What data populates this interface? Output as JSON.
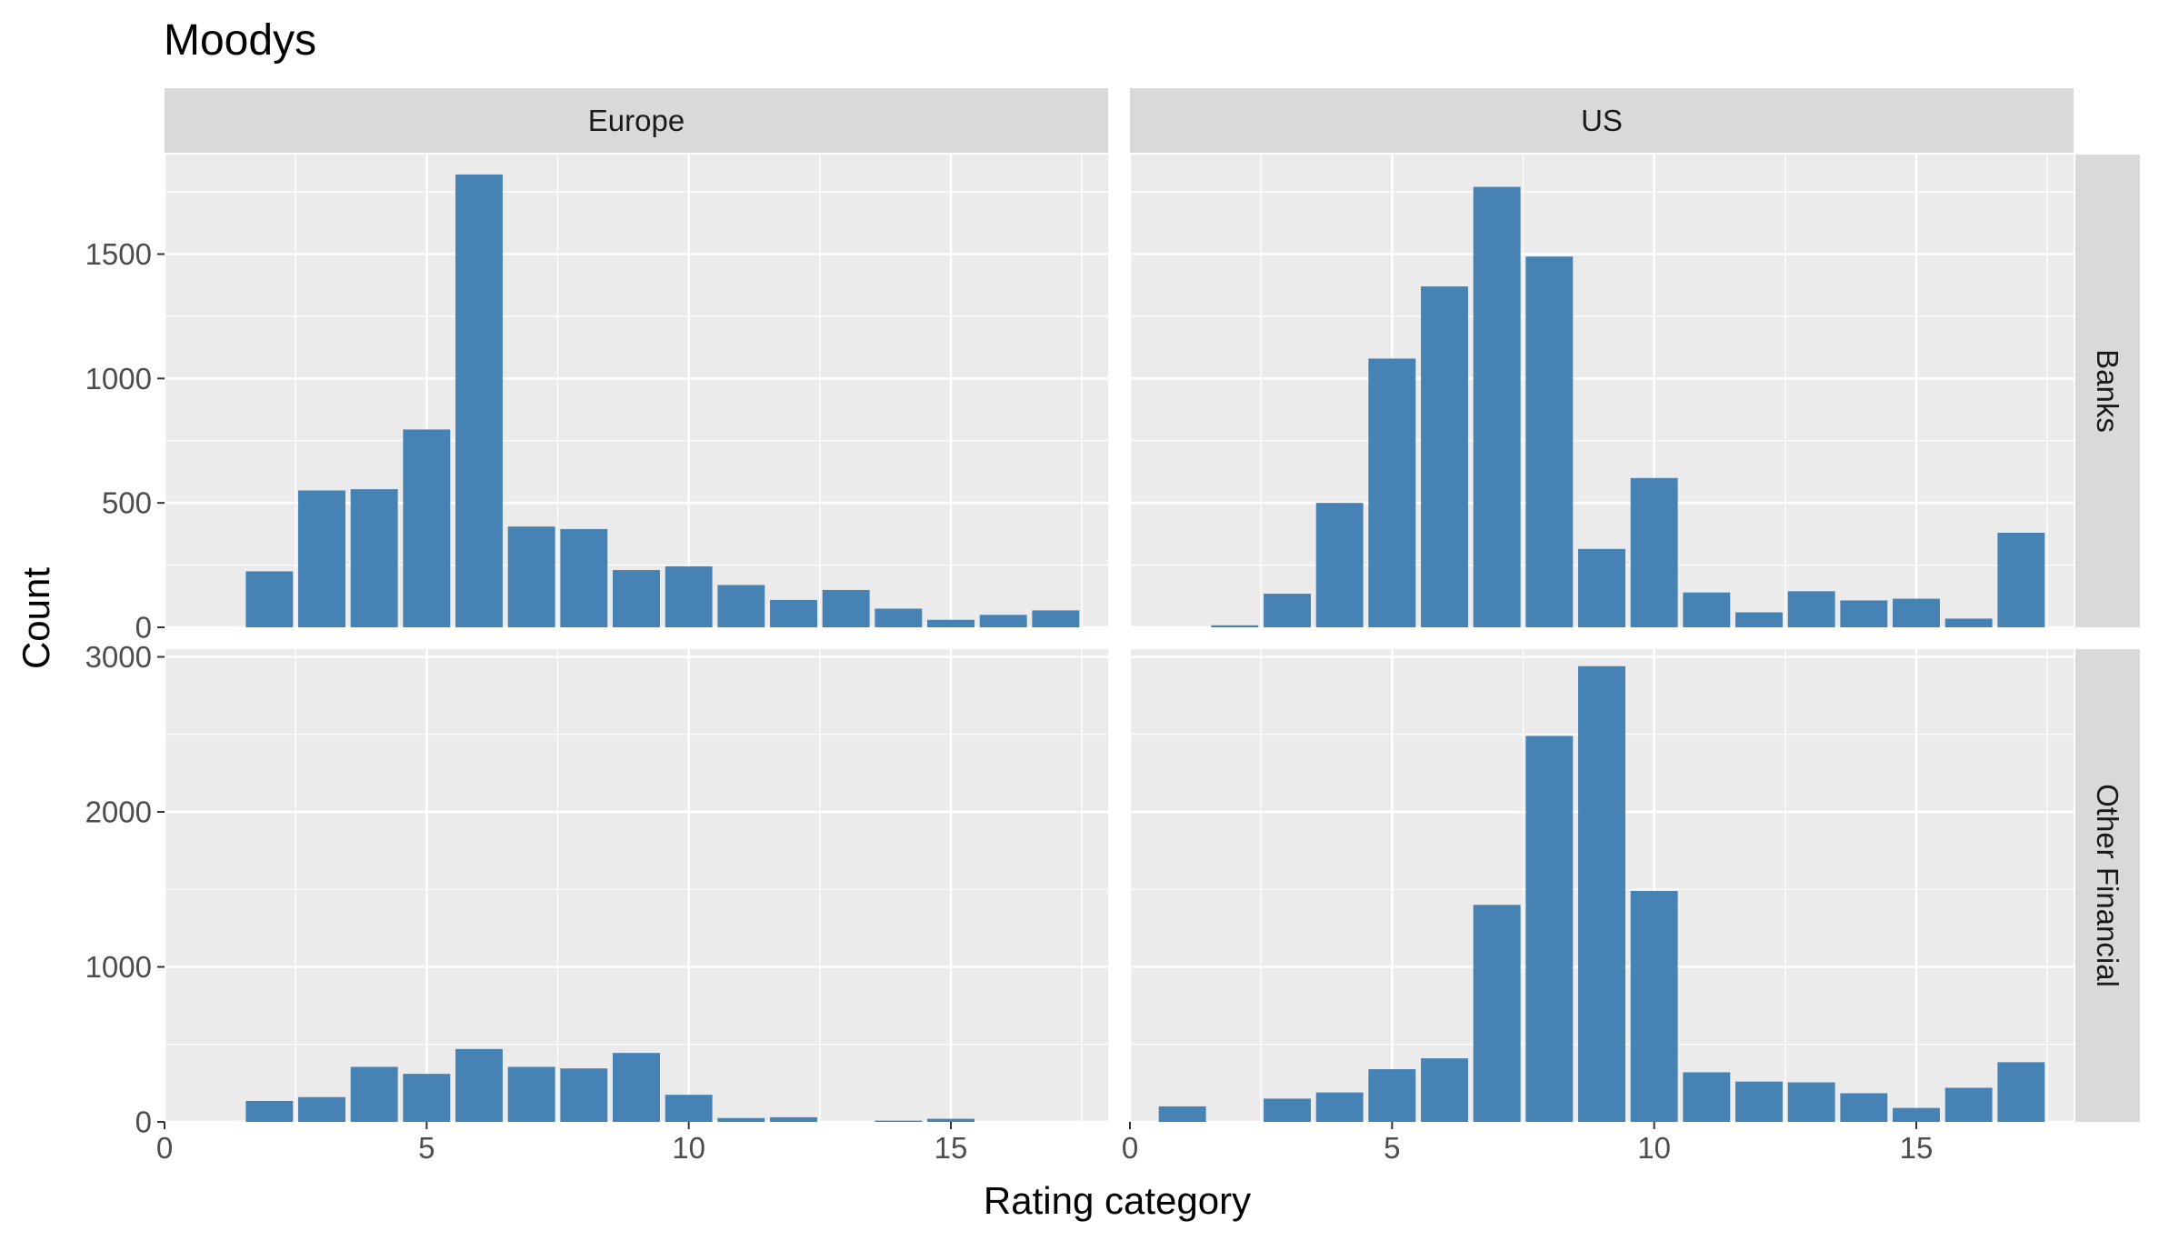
{
  "chart_data": {
    "type": "bar",
    "title": "Moodys",
    "xlabel": "Rating category",
    "ylabel": "Count",
    "xlim": [
      0,
      18
    ],
    "x_ticks": [
      0,
      5,
      10,
      15
    ],
    "grid": true,
    "bar_color": "#4682B4",
    "panel_background": "#EBEBEB",
    "strip_background": "#D9D9D9",
    "columns": [
      "Europe",
      "US"
    ],
    "rows": [
      {
        "name": "Banks",
        "ylim": [
          0,
          1900
        ],
        "y_ticks": [
          0,
          500,
          1000,
          1500
        ]
      },
      {
        "name": "Other Financial",
        "ylim": [
          0,
          3050
        ],
        "y_ticks": [
          0,
          1000,
          2000,
          3000
        ]
      }
    ],
    "panels": [
      {
        "row": "Banks",
        "column": "Europe",
        "x": [
          2,
          3,
          4,
          5,
          6,
          7,
          8,
          9,
          10,
          11,
          12,
          13,
          14,
          15,
          16,
          17
        ],
        "values": [
          225,
          550,
          555,
          795,
          1820,
          405,
          395,
          230,
          245,
          170,
          110,
          150,
          75,
          30,
          50,
          68
        ]
      },
      {
        "row": "Banks",
        "column": "US",
        "x": [
          2,
          3,
          4,
          5,
          6,
          7,
          8,
          9,
          10,
          11,
          12,
          13,
          14,
          15,
          16,
          17
        ],
        "values": [
          8,
          135,
          500,
          1080,
          1370,
          1770,
          1490,
          315,
          600,
          140,
          60,
          145,
          108,
          115,
          35,
          380
        ]
      },
      {
        "row": "Other Financial",
        "column": "Europe",
        "x": [
          2,
          3,
          4,
          5,
          6,
          7,
          8,
          9,
          10,
          11,
          12,
          14,
          15
        ],
        "values": [
          135,
          160,
          355,
          310,
          470,
          355,
          345,
          445,
          175,
          25,
          30,
          8,
          20
        ]
      },
      {
        "row": "Other Financial",
        "column": "US",
        "x": [
          1,
          3,
          4,
          5,
          6,
          7,
          8,
          9,
          10,
          11,
          12,
          13,
          14,
          15,
          16,
          17
        ],
        "values": [
          100,
          150,
          190,
          340,
          410,
          1400,
          2490,
          2940,
          1490,
          320,
          260,
          255,
          185,
          90,
          220,
          385
        ]
      }
    ]
  }
}
